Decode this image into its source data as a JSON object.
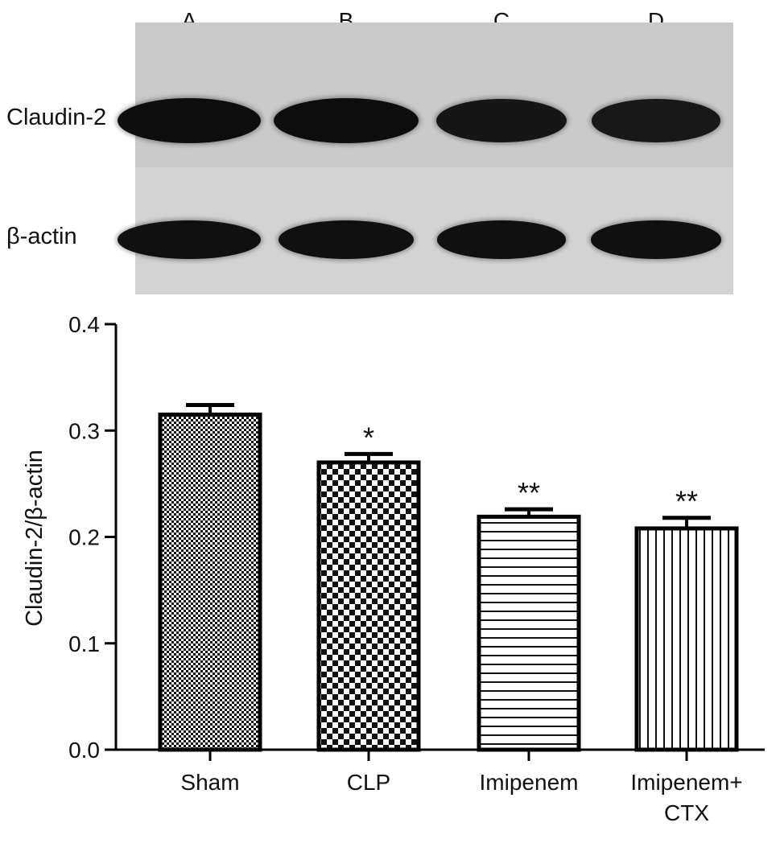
{
  "blot": {
    "lanes": [
      "A",
      "B",
      "C",
      "D"
    ],
    "rows": [
      {
        "label": "Claudin-2",
        "intensity": [
          1.0,
          1.0,
          0.85,
          0.8
        ]
      },
      {
        "label": "β-actin",
        "intensity": [
          0.95,
          0.95,
          0.92,
          0.92
        ]
      }
    ],
    "colors": {
      "membrane_top": "#c9c9c9",
      "membrane_bottom": "#d3d3d3",
      "band": "#0d0d0d"
    }
  },
  "chart_data": {
    "type": "bar",
    "categories": [
      "Sham",
      "CLP",
      "Imipenem",
      "Imipenem+\nCTX"
    ],
    "values": [
      0.315,
      0.27,
      0.219,
      0.208
    ],
    "errors": [
      0.009,
      0.008,
      0.007,
      0.01
    ],
    "significance": [
      "",
      "*",
      "**",
      "**"
    ],
    "patterns": [
      "fine-dots",
      "checker",
      "horizontal-lines",
      "vertical-lines"
    ],
    "ylabel": "Claudin-2/β-actin",
    "xlabel": "",
    "ylim": [
      0,
      0.4
    ],
    "yticks": [
      "0.0",
      "0.1",
      "0.2",
      "0.3",
      "0.4"
    ],
    "grid": false,
    "colors": {
      "bar_edge": "#000000",
      "bar_fill": "#ffffff"
    }
  }
}
